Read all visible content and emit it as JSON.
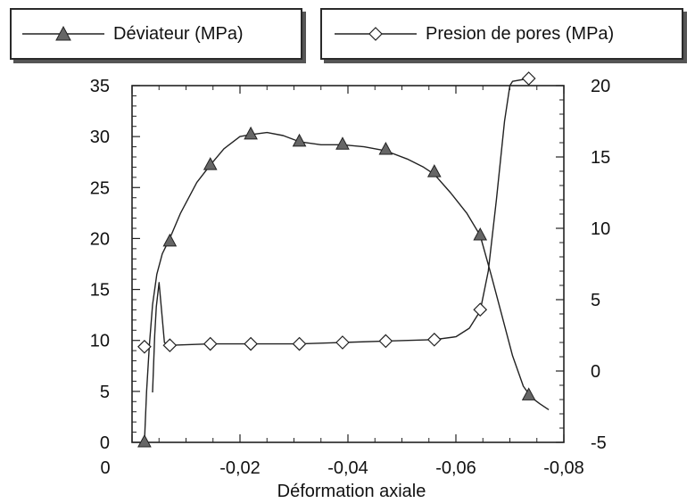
{
  "chart_data": {
    "type": "line",
    "title": "",
    "xlabel": "Déformation axiale",
    "xlim": [
      0,
      -0.08
    ],
    "x_ticks": [
      "0",
      "-0,02",
      "-0,04",
      "-0,06",
      "-0,08"
    ],
    "x_tick_values": [
      0,
      -0.02,
      -0.04,
      -0.06,
      -0.08
    ],
    "ylim_left": [
      0,
      35
    ],
    "y_left_ticks": [
      "0",
      "5",
      "10",
      "15",
      "20",
      "25",
      "30",
      "35"
    ],
    "y_left_tick_values": [
      0,
      5,
      10,
      15,
      20,
      25,
      30,
      35
    ],
    "ylim_right": [
      -5,
      20
    ],
    "y_right_ticks": [
      "-5",
      "0",
      "5",
      "10",
      "15",
      "20"
    ],
    "y_right_tick_values": [
      -5,
      0,
      5,
      10,
      15,
      20
    ],
    "legend_placement": "top, outside plot",
    "grid": false,
    "series": [
      {
        "name": "Déviateur (MPa)",
        "axis": "left",
        "marker": "filled-triangle",
        "color": "#222222",
        "marker_color": "#666666",
        "x": [
          -0.0023,
          -0.0027,
          -0.0032,
          -0.0038,
          -0.0046,
          -0.0056,
          -0.007,
          -0.009,
          -0.012,
          -0.0145,
          -0.017,
          -0.02,
          -0.022,
          -0.025,
          -0.028,
          -0.031,
          -0.035,
          -0.039,
          -0.043,
          -0.047,
          -0.051,
          -0.054,
          -0.056,
          -0.059,
          -0.062,
          -0.0645,
          -0.0665,
          -0.0685,
          -0.0705,
          -0.0725,
          -0.074,
          -0.0755,
          -0.0772
        ],
        "y": [
          0,
          5,
          9.5,
          13.5,
          16.5,
          18.5,
          20,
          22.5,
          25.5,
          27.2,
          28.8,
          30,
          30.2,
          30.4,
          30.1,
          29.5,
          29.2,
          29.2,
          29,
          28.6,
          27.8,
          27,
          26.3,
          24.5,
          22.5,
          20.3,
          16.5,
          12.5,
          8.5,
          5.5,
          4.4,
          3.8,
          3.2
        ],
        "marker_x": [
          -0.0023,
          -0.007,
          -0.0145,
          -0.022,
          -0.031,
          -0.039,
          -0.047,
          -0.056,
          -0.0645,
          -0.0735
        ],
        "marker_y": [
          0,
          19.7,
          27.2,
          30.2,
          29.5,
          29.2,
          28.7,
          26.5,
          20.3,
          4.6
        ]
      },
      {
        "name": "Presion de pores (MPa)",
        "axis": "right",
        "marker": "hollow-diamond",
        "color": "#222222",
        "x": [
          -0.0038,
          -0.004,
          -0.0042,
          -0.0045,
          -0.005,
          -0.006,
          -0.007,
          -0.0145,
          -0.022,
          -0.031,
          -0.039,
          -0.047,
          -0.056,
          -0.06,
          -0.0625,
          -0.0645,
          -0.066,
          -0.0675,
          -0.069,
          -0.07,
          -0.0705,
          -0.0735,
          -0.0745
        ],
        "y": [
          -1.5,
          0.5,
          2.5,
          4.5,
          6.2,
          2,
          1.8,
          1.9,
          1.9,
          1.9,
          2,
          2.1,
          2.2,
          2.4,
          3,
          4.2,
          7,
          12,
          17.5,
          20,
          20.3,
          20.5,
          20.5
        ],
        "marker_x": [
          -0.0023,
          -0.007,
          -0.0145,
          -0.022,
          -0.031,
          -0.039,
          -0.047,
          -0.056,
          -0.0645,
          -0.0735
        ],
        "marker_y": [
          1.7,
          1.8,
          1.9,
          1.9,
          1.9,
          2.0,
          2.1,
          2.2,
          4.3,
          20.5
        ]
      }
    ]
  }
}
